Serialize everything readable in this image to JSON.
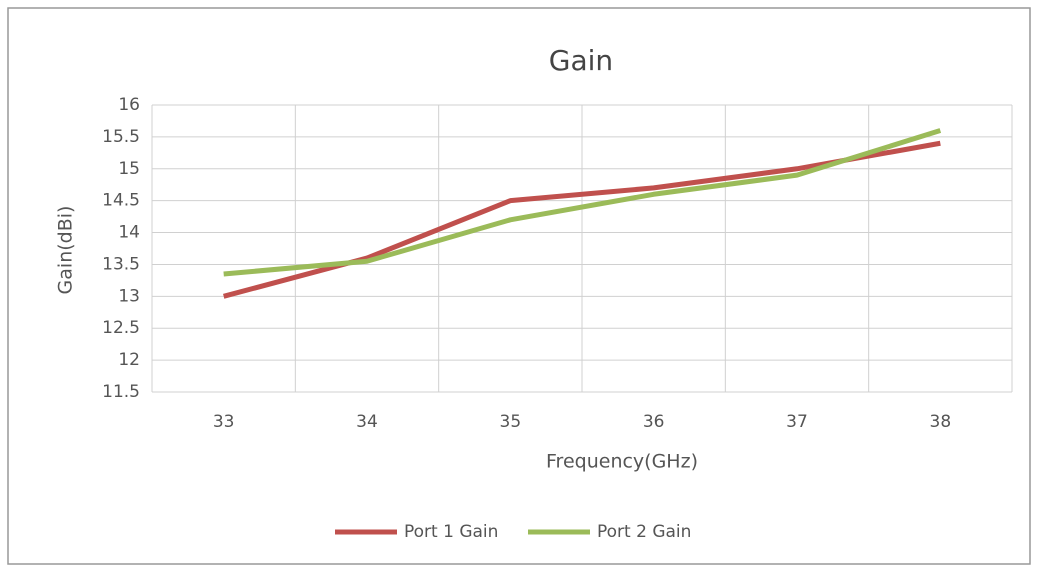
{
  "chart_data": {
    "type": "line",
    "title": "Gain",
    "x_label": "Frequency(GHz)",
    "y_label": "Gain(dBi)",
    "categories": [
      "33",
      "34",
      "35",
      "36",
      "37",
      "38"
    ],
    "series": [
      {
        "name": "Port 1 Gain",
        "color": "#c0504d",
        "values": [
          13.0,
          13.6,
          14.5,
          14.7,
          15.0,
          15.4
        ]
      },
      {
        "name": "Port 2 Gain",
        "color": "#9bbb59",
        "values": [
          13.35,
          13.55,
          14.2,
          14.6,
          14.9,
          15.6
        ]
      }
    ],
    "ylim": [
      11.5,
      16
    ],
    "yticks": [
      11.5,
      12,
      12.5,
      13,
      13.5,
      14,
      14.5,
      15,
      15.5,
      16
    ],
    "grid": true,
    "legend": "bottom"
  }
}
